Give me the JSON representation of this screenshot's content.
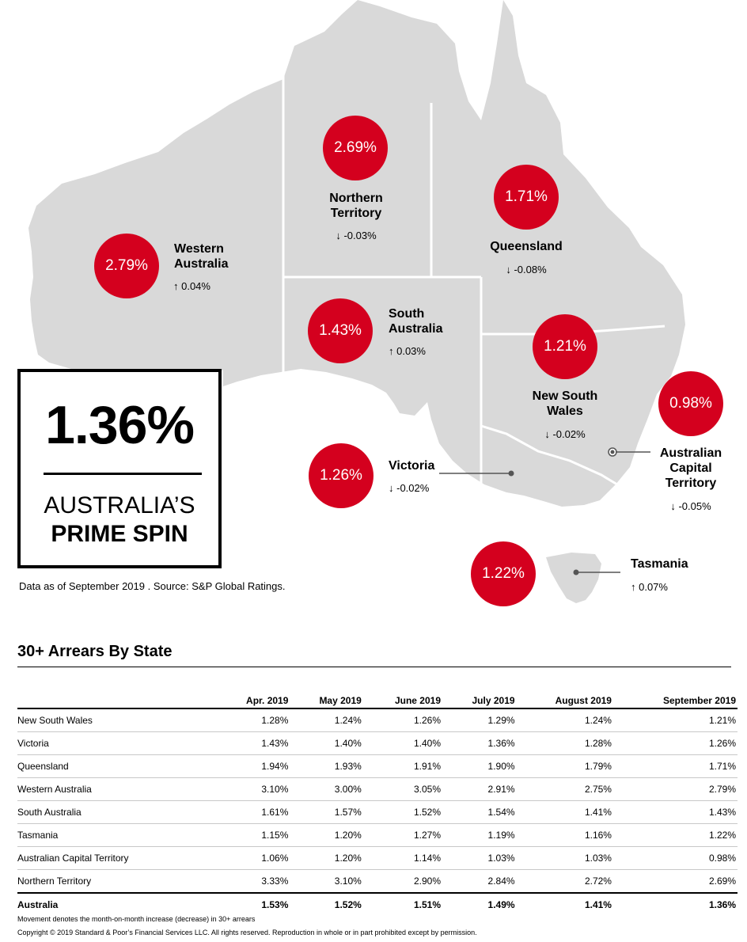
{
  "colors": {
    "map_fill": "#d9d9d9",
    "circle": "#d4001e",
    "border_line": "#ffffff",
    "leader": "#555555"
  },
  "states": {
    "wa": {
      "name_line1": "Western",
      "name_line2": "Australia",
      "value": "2.79%",
      "change": "↑ 0.04%"
    },
    "nt": {
      "name_line1": "Northern",
      "name_line2": "Territory",
      "value": "2.69%",
      "change": "↓ -0.03%"
    },
    "qld": {
      "name_line1": "Queensland",
      "value": "1.71%",
      "change": "↓ -0.08%"
    },
    "sa": {
      "name_line1": "South",
      "name_line2": "Australia",
      "value": "1.43%",
      "change": "↑ 0.03%"
    },
    "nsw": {
      "name_line1": "New South",
      "name_line2": "Wales",
      "value": "1.21%",
      "change": "↓ -0.02%"
    },
    "act": {
      "name_line1": "Australian",
      "name_line2": "Capital",
      "name_line3": "Territory",
      "value": "0.98%",
      "change": "↓ -0.05%"
    },
    "vic": {
      "name_line1": "Victoria",
      "value": "1.26%",
      "change": "↓ -0.02%"
    },
    "tas": {
      "name_line1": "Tasmania",
      "value": "1.22%",
      "change": "↑ 0.07%"
    }
  },
  "callout": {
    "value": "1.36%",
    "line1": "AUSTRALIA’S",
    "line2": "PRIME SPIN"
  },
  "source": "Data as of September 2019 . Source: S&P Global Ratings.",
  "table": {
    "title": "30+ Arrears By State",
    "columns": [
      "",
      "Apr. 2019",
      "May 2019",
      "June 2019",
      "July 2019",
      "August 2019",
      "September 2019"
    ],
    "rows": [
      {
        "state": "New South Wales",
        "values": [
          "1.28%",
          "1.24%",
          "1.26%",
          "1.29%",
          "1.24%",
          "1.21%"
        ]
      },
      {
        "state": "Victoria",
        "values": [
          "1.43%",
          "1.40%",
          "1.40%",
          "1.36%",
          "1.28%",
          "1.26%"
        ]
      },
      {
        "state": "Queensland",
        "values": [
          "1.94%",
          "1.93%",
          "1.91%",
          "1.90%",
          "1.79%",
          "1.71%"
        ]
      },
      {
        "state": "Western Australia",
        "values": [
          "3.10%",
          "3.00%",
          "3.05%",
          "2.91%",
          "2.75%",
          "2.79%"
        ]
      },
      {
        "state": "South Australia",
        "values": [
          "1.61%",
          "1.57%",
          "1.52%",
          "1.54%",
          "1.41%",
          "1.43%"
        ]
      },
      {
        "state": "Tasmania",
        "values": [
          "1.15%",
          "1.20%",
          "1.27%",
          "1.19%",
          "1.16%",
          "1.22%"
        ]
      },
      {
        "state": "Australian Capital Territory",
        "values": [
          "1.06%",
          "1.20%",
          "1.14%",
          "1.03%",
          "1.03%",
          "0.98%"
        ]
      },
      {
        "state": "Northern Territory",
        "values": [
          "3.33%",
          "3.10%",
          "2.90%",
          "2.84%",
          "2.72%",
          "2.69%"
        ]
      }
    ],
    "total": {
      "state": "Australia",
      "values": [
        "1.53%",
        "1.52%",
        "1.51%",
        "1.49%",
        "1.41%",
        "1.36%"
      ]
    }
  },
  "footnotes": {
    "movement": "Movement denotes the month-on-month increase (decrease) in 30+ arrears",
    "copyright": "Copyright © 2019 Standard & Poor’s Financial Services LLC. All rights reserved. Reproduction in whole or in part prohibited except by permission."
  }
}
